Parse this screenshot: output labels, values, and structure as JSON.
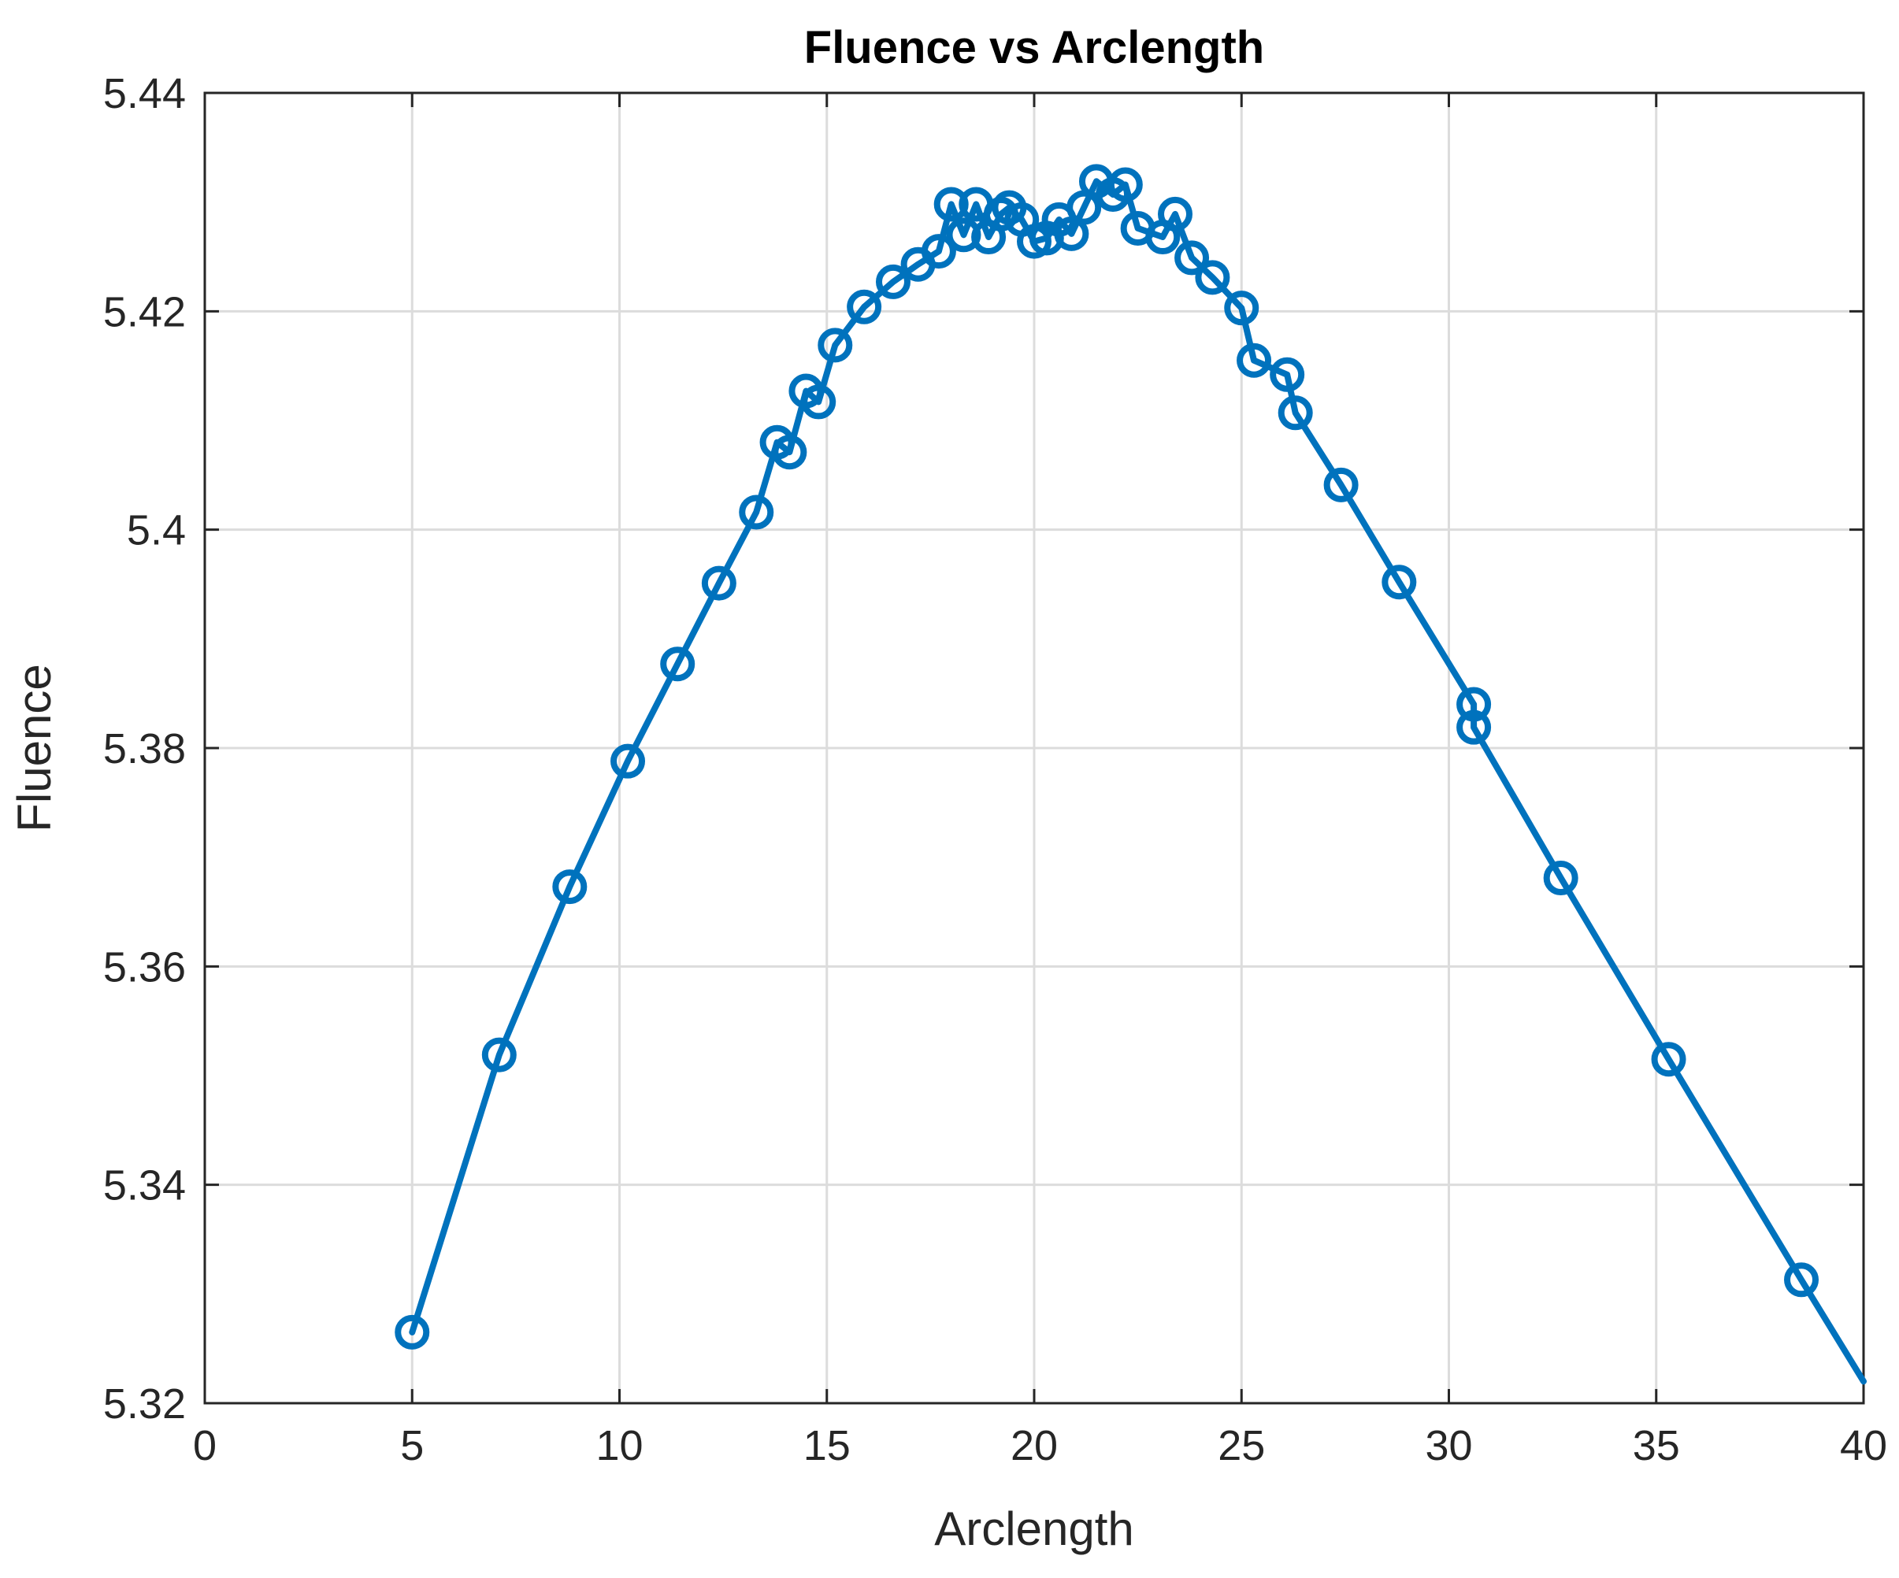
{
  "chart_data": {
    "type": "line",
    "title": "Fluence vs Arclength",
    "xlabel": "Arclength",
    "ylabel": "Fluence",
    "xlim": [
      0,
      40
    ],
    "ylim": [
      5.32,
      5.44
    ],
    "xticks": [
      0,
      5,
      10,
      15,
      20,
      25,
      30,
      35,
      40
    ],
    "yticks": [
      5.32,
      5.34,
      5.36,
      5.38,
      5.4,
      5.42,
      5.44
    ],
    "xtick_labels": [
      "0",
      "5",
      "10",
      "15",
      "20",
      "25",
      "30",
      "35",
      "40"
    ],
    "ytick_labels": [
      "5.32",
      "5.34",
      "5.36",
      "5.38",
      "5.4",
      "5.42",
      "5.44"
    ],
    "grid": true,
    "line_color": "#0072BD",
    "series": [
      {
        "marker": "circle",
        "x": [
          5.0,
          7.1,
          8.8,
          10.2,
          11.4,
          12.4,
          13.3,
          13.8,
          14.1,
          14.5,
          14.8,
          15.2,
          15.9,
          16.6,
          17.2,
          17.7,
          18.0,
          18.3,
          18.6,
          18.9,
          19.2,
          19.4,
          19.7,
          20.0,
          20.3,
          20.6,
          20.9,
          21.2,
          21.5,
          21.9,
          22.2,
          22.5,
          23.1,
          23.4,
          23.8,
          24.3,
          25.0,
          25.3,
          26.1,
          26.3,
          27.4,
          28.8,
          30.6,
          30.6,
          32.7,
          35.3,
          38.5,
          40.0
        ],
        "y": [
          5.3265,
          5.3519,
          5.3673,
          5.3788,
          5.3877,
          5.3951,
          5.4016,
          5.408,
          5.4071,
          5.4127,
          5.4117,
          5.4169,
          5.4204,
          5.4227,
          5.4243,
          5.4255,
          5.4298,
          5.427,
          5.4298,
          5.4268,
          5.4289,
          5.4295,
          5.4284,
          5.4264,
          5.4267,
          5.4284,
          5.4271,
          5.4295,
          5.4319,
          5.4307,
          5.4316,
          5.4276,
          5.4268,
          5.4289,
          5.4249,
          5.4231,
          5.4203,
          5.4155,
          5.4142,
          5.4107,
          5.4041,
          5.3952,
          5.384,
          5.3819,
          5.3681,
          5.3515,
          5.3313,
          5.322
        ],
        "marker_visible": [
          true,
          true,
          true,
          true,
          true,
          true,
          true,
          true,
          true,
          true,
          true,
          true,
          true,
          true,
          true,
          true,
          true,
          true,
          true,
          true,
          true,
          true,
          true,
          true,
          true,
          true,
          true,
          true,
          true,
          true,
          true,
          true,
          true,
          true,
          true,
          true,
          true,
          true,
          true,
          true,
          true,
          true,
          true,
          true,
          true,
          true,
          true,
          false
        ]
      }
    ]
  }
}
